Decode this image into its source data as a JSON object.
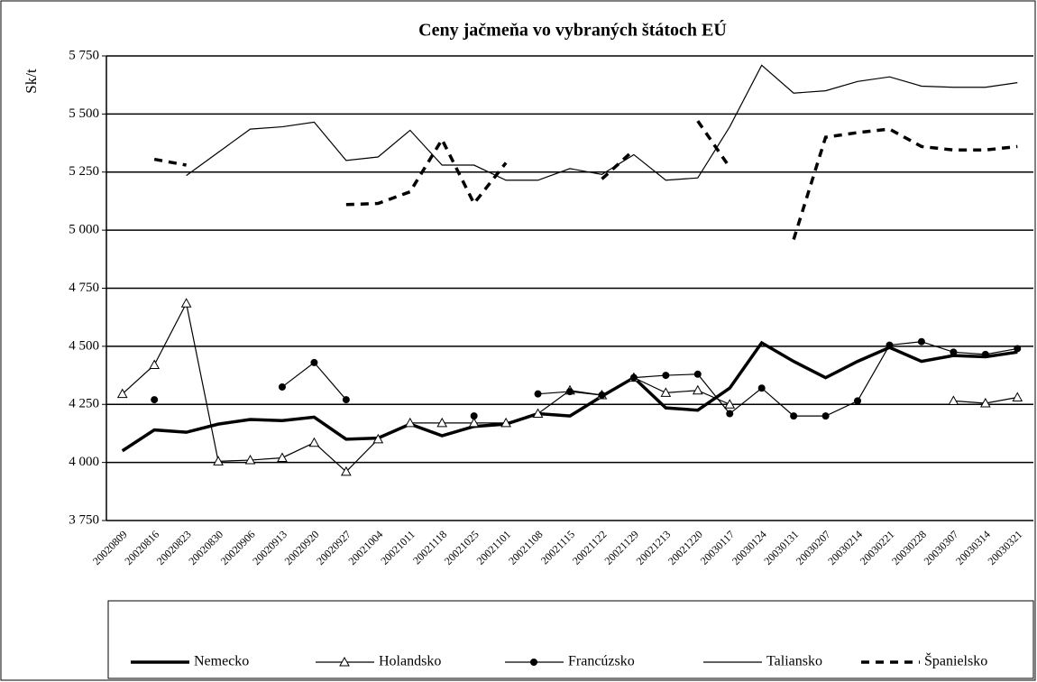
{
  "chart_data": {
    "type": "line",
    "title": "Ceny jačmeňa vo vybraných štátoch EÚ",
    "y_label": "Sk/t",
    "categories": [
      "20020809",
      "20020816",
      "20020823",
      "20020830",
      "20020906",
      "20020913",
      "20020920",
      "20020927",
      "20021004",
      "20021011",
      "20021118",
      "20021025",
      "20021101",
      "20021108",
      "20021115",
      "20021122",
      "20021129",
      "20021213",
      "20021220",
      "20030117",
      "20030124",
      "20030131",
      "20030207",
      "20030214",
      "20030221",
      "20030228",
      "20030307",
      "20030314",
      "20030321"
    ],
    "ylim": [
      3750,
      5750
    ],
    "yticks": [
      {
        "value": 3750,
        "label": "3 750"
      },
      {
        "value": 4000,
        "label": "4 000"
      },
      {
        "value": 4250,
        "label": "4 250"
      },
      {
        "value": 4500,
        "label": "4 500"
      },
      {
        "value": 4750,
        "label": "4 750"
      },
      {
        "value": 5000,
        "label": "5 000"
      },
      {
        "value": 5250,
        "label": "5 250"
      },
      {
        "value": 5500,
        "label": "5 500"
      },
      {
        "value": 5750,
        "label": "5 750"
      }
    ],
    "grid": true,
    "legend": "bottom",
    "series": [
      {
        "name": "Nemecko",
        "color": "#000000",
        "style": "thick",
        "values": [
          4050,
          4140,
          4130,
          4165,
          4185,
          4180,
          4195,
          4100,
          4105,
          4165,
          4115,
          4155,
          4165,
          4210,
          4200,
          4285,
          4365,
          4235,
          4225,
          4320,
          4515,
          4435,
          4365,
          4435,
          4495,
          4435,
          4460,
          4455,
          4475
        ]
      },
      {
        "name": "Holandsko",
        "color": "#000000",
        "style": "triangle",
        "values": [
          4295,
          4420,
          4685,
          4005,
          4010,
          4020,
          4085,
          3960,
          4100,
          4170,
          4170,
          4170,
          4170,
          4210,
          4310,
          4290,
          4365,
          4300,
          4310,
          4250,
          null,
          null,
          null,
          null,
          null,
          null,
          4265,
          4255,
          4280
        ]
      },
      {
        "name": "Francúzsko",
        "color": "#000000",
        "style": "circle",
        "values": [
          null,
          4270,
          null,
          null,
          null,
          4325,
          4430,
          4270,
          null,
          null,
          null,
          4200,
          null,
          4295,
          4305,
          4290,
          4365,
          4375,
          4380,
          4210,
          4320,
          4200,
          4200,
          4265,
          4505,
          4520,
          4475,
          4465,
          4490
        ]
      },
      {
        "name": "Taliansko",
        "color": "#000000",
        "style": "thin",
        "values": [
          null,
          null,
          5235,
          5335,
          5435,
          5445,
          5465,
          5300,
          5315,
          5430,
          5280,
          5280,
          5215,
          5215,
          5265,
          5240,
          5325,
          5215,
          5225,
          5445,
          5710,
          5590,
          5600,
          5640,
          5660,
          5620,
          5615,
          5615,
          5635
        ]
      },
      {
        "name": "Španielsko",
        "color": "#000000",
        "style": "dashed",
        "values": [
          null,
          5305,
          5280,
          null,
          null,
          null,
          null,
          5110,
          5115,
          5165,
          5390,
          5115,
          5290,
          null,
          null,
          5220,
          5345,
          null,
          5470,
          5270,
          null,
          4960,
          5400,
          5420,
          5435,
          5360,
          5345,
          5345,
          5360
        ]
      }
    ]
  }
}
